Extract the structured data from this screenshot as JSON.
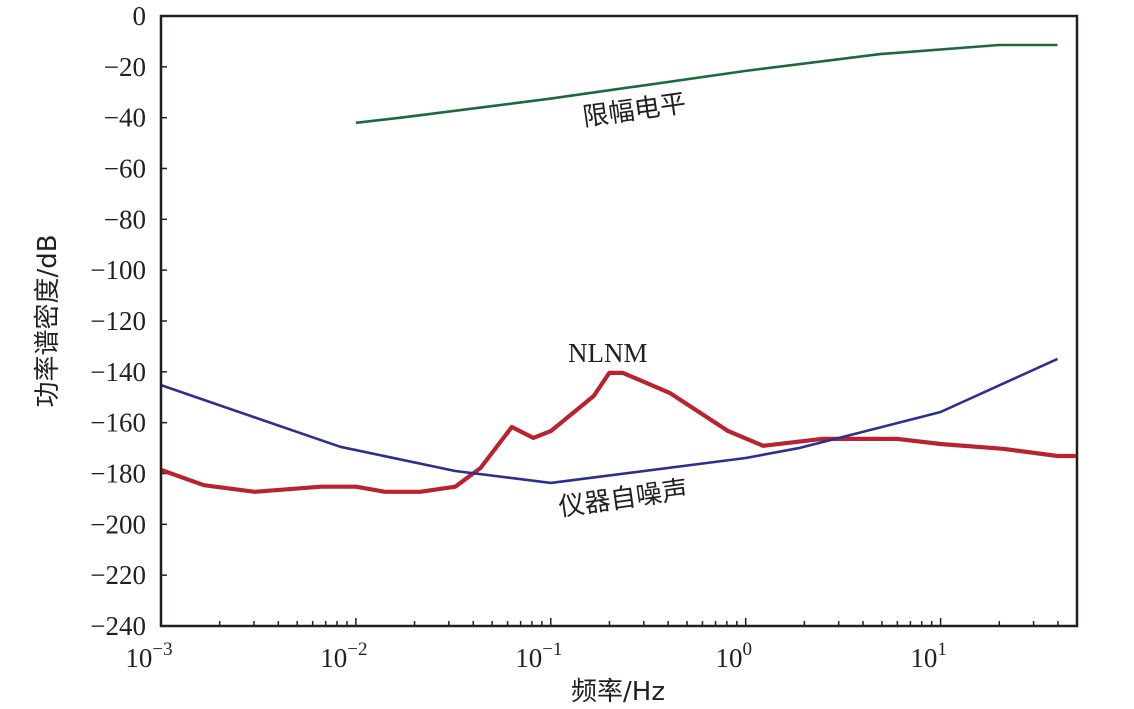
{
  "chart_data": {
    "type": "line",
    "title": "",
    "xlabel": "频率/Hz",
    "ylabel": "功率谱密度/dB",
    "xscale": "log",
    "xlim_log10": [
      -3,
      1.7
    ],
    "ylim": [
      -240,
      0
    ],
    "grid": false,
    "x_ticks": [
      {
        "exp": "-3",
        "base": "10"
      },
      {
        "exp": "-2",
        "base": "10"
      },
      {
        "exp": "-1",
        "base": "10"
      },
      {
        "exp": "0",
        "base": "10"
      },
      {
        "exp": "1",
        "base": "10"
      }
    ],
    "y_ticks": [
      0,
      -20,
      -40,
      -60,
      -80,
      -100,
      -120,
      -140,
      -160,
      -180,
      -200,
      -220,
      -240
    ],
    "y_tick_labels": [
      "0",
      "−20",
      "−40",
      "−60",
      "−80",
      "−100",
      "−120",
      "−140",
      "−160",
      "−180",
      "−200",
      "−220",
      "−240"
    ],
    "series": [
      {
        "name": "限幅电平",
        "color": "#1a6b3c",
        "log10_f": [
          -2.0,
          -1.77,
          -1.0,
          0.0,
          0.69,
          1.3,
          1.6
        ],
        "values": [
          -42,
          -40,
          -32.5,
          -21.6,
          -15,
          -11.4,
          -11.4
        ]
      },
      {
        "name": "NLNM",
        "color": "#b8232f",
        "log10_f": [
          -3.0,
          -2.78,
          -2.52,
          -2.18,
          -2.0,
          -1.85,
          -1.67,
          -1.49,
          -1.36,
          -1.2,
          -1.09,
          -1.0,
          -0.78,
          -0.7,
          -0.63,
          -0.39,
          -0.09,
          0.09,
          0.39,
          0.78,
          1.0,
          1.32,
          1.6,
          1.7
        ],
        "values": [
          -178.6,
          -184.6,
          -187.2,
          -185.2,
          -185.2,
          -187.2,
          -187.2,
          -185.2,
          -177.8,
          -161.7,
          -166,
          -163.3,
          -149.5,
          -140.4,
          -140.4,
          -148.3,
          -163.3,
          -169.1,
          -166.4,
          -166.4,
          -168.4,
          -170.3,
          -173.1,
          -173.1
        ]
      },
      {
        "name": "仪器自噪声",
        "color": "#2b2f8f",
        "log10_f": [
          -3.0,
          -2.08,
          -1.49,
          -1.0,
          0.0,
          0.28,
          1.0,
          1.6
        ],
        "values": [
          -145.2,
          -169.5,
          -179,
          -183.7,
          -173.9,
          -169.9,
          -155.8,
          -134.9
        ]
      }
    ],
    "annotations": [
      {
        "text": "限幅电平",
        "series": "限幅电平"
      },
      {
        "text": "NLNM",
        "series": "NLNM"
      },
      {
        "text": "仪器自噪声",
        "series": "仪器自噪声"
      }
    ]
  }
}
